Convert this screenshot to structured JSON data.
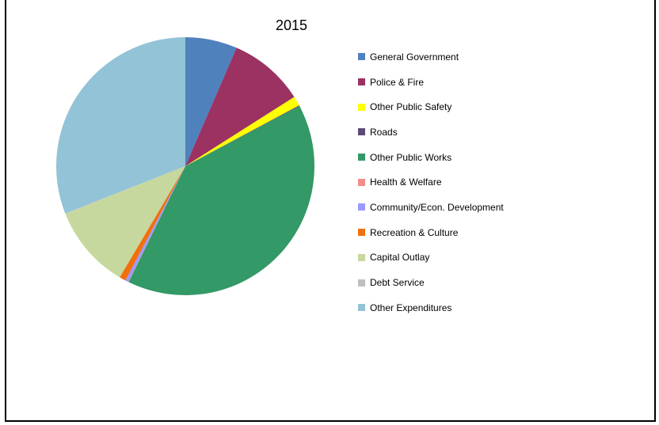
{
  "chart_data": {
    "type": "pie",
    "title": "2015",
    "legend_position": "right",
    "slices": [
      {
        "label": "General Government",
        "value": 6.5,
        "color": "#4F81BD"
      },
      {
        "label": "Police & Fire",
        "value": 9.5,
        "color": "#9B3261"
      },
      {
        "label": "Other Public Safety",
        "value": 1.2,
        "color": "#FFFF00"
      },
      {
        "label": "Roads",
        "value": 0.1,
        "color": "#5F497A"
      },
      {
        "label": "Other Public Works",
        "value": 40.0,
        "color": "#339966"
      },
      {
        "label": "Health & Welfare",
        "value": 0.05,
        "color": "#F28E86"
      },
      {
        "label": "Community/Econ. Development",
        "value": 0.4,
        "color": "#9999FF"
      },
      {
        "label": "Recreation & Culture",
        "value": 0.8,
        "color": "#F26F0D"
      },
      {
        "label": "Capital Outlay",
        "value": 10.5,
        "color": "#C7D89E"
      },
      {
        "label": "Debt Service",
        "value": 0.05,
        "color": "#BFBFBF"
      },
      {
        "label": "Other Expenditures",
        "value": 31.0,
        "color": "#93C3D6"
      }
    ]
  }
}
